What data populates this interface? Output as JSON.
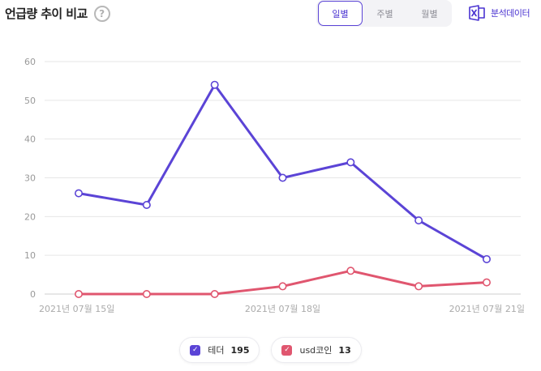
{
  "header": {
    "title": "언급량 추이 비교",
    "help_glyph": "?",
    "tabs": [
      {
        "label": "일별",
        "active": true
      },
      {
        "label": "주별",
        "active": false
      },
      {
        "label": "월별",
        "active": false
      }
    ],
    "export_label": "분석데이터",
    "export_icon": "excel-icon"
  },
  "legend": [
    {
      "name": "테더",
      "total": "195",
      "color": "#5b44d6"
    },
    {
      "name": "usd코인",
      "total": "13",
      "color": "#e0566f"
    }
  ],
  "chart_data": {
    "type": "line",
    "x": [
      "2021-07-15",
      "2021-07-16",
      "2021-07-17",
      "2021-07-18",
      "2021-07-19",
      "2021-07-20",
      "2021-07-21"
    ],
    "x_tick_labels": [
      {
        "index": 0,
        "label": "2021년 07월 15일"
      },
      {
        "index": 3,
        "label": "2021년 07월 18일"
      },
      {
        "index": 6,
        "label": "2021년 07월 21일"
      }
    ],
    "ylim": [
      0,
      60
    ],
    "yticks": [
      0,
      10,
      20,
      30,
      40,
      50,
      60
    ],
    "grid": true,
    "legend_position": "bottom",
    "series": [
      {
        "name": "테더",
        "color": "#5b44d6",
        "values": [
          26,
          23,
          54,
          30,
          34,
          19,
          9
        ]
      },
      {
        "name": "usd코인",
        "color": "#e0566f",
        "values": [
          0,
          0,
          0,
          2,
          6,
          2,
          3
        ]
      }
    ]
  }
}
